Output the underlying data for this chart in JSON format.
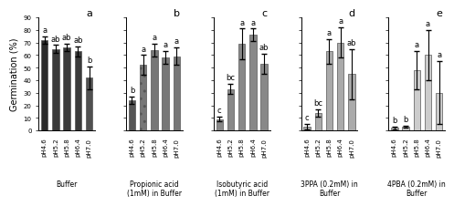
{
  "groups": [
    {
      "label": "Buffer",
      "panel_letter": "a",
      "bars": [
        {
          "x_label": "pH4.6",
          "value": 72,
          "sd": 3,
          "sig": "a",
          "color": "#2a2a2a"
        },
        {
          "x_label": "pH5.2",
          "value": 65,
          "sd": 3,
          "sig": "ab",
          "color": "#3a3a3a"
        },
        {
          "x_label": "pH5.8",
          "value": 66,
          "sd": 3,
          "sig": "ab",
          "color": "#3a3a3a"
        },
        {
          "x_label": "pH6.4",
          "value": 63,
          "sd": 4,
          "sig": "ab",
          "color": "#3a3a3a"
        },
        {
          "x_label": "pH7.0",
          "value": 42,
          "sd": 9,
          "sig": "b",
          "color": "#505050"
        }
      ]
    },
    {
      "label": "Propionic acid\n(1mM) in Buffer",
      "panel_letter": "b",
      "bars": [
        {
          "x_label": "pH4.6",
          "value": 24,
          "sd": 3,
          "sig": "b",
          "color": "#555555"
        },
        {
          "x_label": "pH5.2",
          "value": 52,
          "sd": 8,
          "sig": "a",
          "color": "#777777",
          "hatch": ".."
        },
        {
          "x_label": "pH5.8",
          "value": 64,
          "sd": 5,
          "sig": "a",
          "color": "#777777"
        },
        {
          "x_label": "pH6.4",
          "value": 58,
          "sd": 5,
          "sig": "a",
          "color": "#777777"
        },
        {
          "x_label": "pH7.0",
          "value": 59,
          "sd": 7,
          "sig": "a",
          "color": "#777777"
        }
      ]
    },
    {
      "label": "Isobutyric acid\n(1mM) in Buffer",
      "panel_letter": "c",
      "bars": [
        {
          "x_label": "pH4.6",
          "value": 9,
          "sd": 2,
          "sig": "c",
          "color": "#888888"
        },
        {
          "x_label": "pH5.2",
          "value": 33,
          "sd": 4,
          "sig": "bc",
          "color": "#888888"
        },
        {
          "x_label": "pH5.8",
          "value": 69,
          "sd": 12,
          "sig": "a",
          "color": "#888888"
        },
        {
          "x_label": "pH6.4",
          "value": 76,
          "sd": 5,
          "sig": "a",
          "color": "#888888"
        },
        {
          "x_label": "pH7.0",
          "value": 53,
          "sd": 8,
          "sig": "ab",
          "color": "#888888"
        }
      ]
    },
    {
      "label": "3PPA (0.2mM) in\nBuffer",
      "panel_letter": "d",
      "bars": [
        {
          "x_label": "pH4.6",
          "value": 3,
          "sd": 2,
          "sig": "c",
          "color": "#aaaaaa"
        },
        {
          "x_label": "pH5.2",
          "value": 14,
          "sd": 3,
          "sig": "bc",
          "color": "#aaaaaa"
        },
        {
          "x_label": "pH5.8",
          "value": 63,
          "sd": 10,
          "sig": "a",
          "color": "#aaaaaa"
        },
        {
          "x_label": "pH6.4",
          "value": 70,
          "sd": 12,
          "sig": "a",
          "color": "#aaaaaa"
        },
        {
          "x_label": "pH7.0",
          "value": 45,
          "sd": 20,
          "sig": "ab",
          "color": "#aaaaaa"
        }
      ]
    },
    {
      "label": "4PBA (0.2mM) in\nBuffer",
      "panel_letter": "e",
      "bars": [
        {
          "x_label": "pH4.6",
          "value": 2,
          "sd": 1,
          "sig": "b",
          "color": "#cccccc"
        },
        {
          "x_label": "pH5.2",
          "value": 3,
          "sd": 1,
          "sig": "b",
          "color": "#cccccc"
        },
        {
          "x_label": "pH5.8",
          "value": 48,
          "sd": 15,
          "sig": "a",
          "color": "#cccccc"
        },
        {
          "x_label": "pH6.4",
          "value": 60,
          "sd": 20,
          "sig": "a",
          "color": "#cccccc"
        },
        {
          "x_label": "pH7.0",
          "value": 30,
          "sd": 25,
          "sig": "a",
          "color": "#cccccc"
        }
      ]
    }
  ],
  "ylabel": "Germination (%)",
  "ylim": [
    0,
    90
  ],
  "yticks": [
    0,
    10,
    20,
    30,
    40,
    50,
    60,
    70,
    80,
    90
  ],
  "bar_width": 0.6,
  "sig_fontsize": 6,
  "label_fontsize": 5.5,
  "panel_letter_fontsize": 8,
  "ylabel_fontsize": 7,
  "tick_fontsize": 5
}
